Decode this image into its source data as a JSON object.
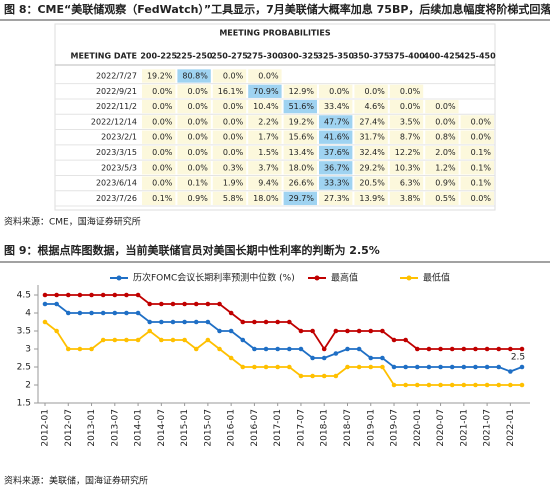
{
  "figure8": {
    "title": "图 8：CME“美联储观察（FedWatch）”工具显示，7月美联储大概率加息 75BP，后续加息幅度将阶梯式回落",
    "table": {
      "header": "MEETING PROBABILITIES",
      "columns": [
        "MEETING DATE",
        "200-225",
        "225-250",
        "250-275",
        "275-300",
        "300-325",
        "325-350",
        "350-375",
        "375-400",
        "400-425",
        "425-450"
      ],
      "rows": [
        [
          "2022/7/27",
          "19.2%",
          "80.8%",
          "0.0%",
          "0.0%",
          null,
          null,
          null,
          null,
          null,
          null
        ],
        [
          "2022/9/21",
          "0.0%",
          "0.0%",
          "16.1%",
          "70.9%",
          "12.9%",
          "0.0%",
          "0.0%",
          "0.0%",
          null,
          null
        ],
        [
          "2022/11/2",
          "0.0%",
          "0.0%",
          "0.0%",
          "10.4%",
          "51.6%",
          "33.4%",
          "4.6%",
          "0.0%",
          "0.0%",
          null
        ],
        [
          "2022/12/14",
          "0.0%",
          "0.0%",
          "0.0%",
          "2.2%",
          "19.2%",
          "47.7%",
          "27.4%",
          "3.5%",
          "0.0%",
          "0.0%"
        ],
        [
          "2023/2/1",
          "0.0%",
          "0.0%",
          "0.0%",
          "1.7%",
          "15.6%",
          "41.6%",
          "31.7%",
          "8.7%",
          "0.8%",
          "0.0%"
        ],
        [
          "2023/3/15",
          "0.0%",
          "0.0%",
          "0.0%",
          "1.5%",
          "13.4%",
          "37.6%",
          "32.4%",
          "12.2%",
          "2.0%",
          "0.1%"
        ],
        [
          "2023/5/3",
          "0.0%",
          "0.0%",
          "0.3%",
          "3.7%",
          "18.0%",
          "36.7%",
          "29.2%",
          "10.3%",
          "1.2%",
          "0.1%"
        ],
        [
          "2023/6/14",
          "0.0%",
          "0.1%",
          "1.9%",
          "9.4%",
          "26.6%",
          "33.3%",
          "20.5%",
          "6.3%",
          "0.9%",
          "0.1%"
        ],
        [
          "2023/7/26",
          "0.1%",
          "0.9%",
          "5.8%",
          "18.0%",
          "29.7%",
          "27.3%",
          "13.9%",
          "3.8%",
          "0.5%",
          "0.0%"
        ]
      ]
    },
    "source": "资料来源：CME，国海证券研究所"
  },
  "figure9": {
    "title": "图 9：根据点阵图数据，当前美联储官员对美国长期中性利率的判断为 2.5%",
    "source": "资料来源：美联储，国海证券研究所"
  },
  "chart_data": {
    "type": "line",
    "categories": [
      "2012-01",
      null,
      "2012-07",
      null,
      "2013-01",
      null,
      "2013-07",
      null,
      "2014-01",
      null,
      "2014-07",
      null,
      "2015-01",
      null,
      "2015-07",
      null,
      "2016-01",
      null,
      "2016-07",
      null,
      "2017-01",
      null,
      "2017-07",
      null,
      "2018-01",
      null,
      "2018-07",
      null,
      "2019-01",
      null,
      "2019-07",
      null,
      "2020-01",
      null,
      "2020-07",
      null,
      "2021-01",
      null,
      "2021-07",
      null,
      "2022-01",
      null
    ],
    "series": [
      {
        "name": "历次FOMC会议长期利率预测中位数 (%)",
        "color": "#1f6fc5",
        "values": [
          4.25,
          4.25,
          4,
          4,
          4,
          4,
          4,
          4,
          4,
          3.75,
          3.75,
          3.75,
          3.75,
          3.75,
          3.75,
          3.5,
          3.5,
          3.25,
          3,
          3,
          3,
          3,
          3,
          2.75,
          2.75,
          2.875,
          3,
          3,
          2.75,
          2.75,
          2.5,
          2.5,
          2.5,
          2.5,
          2.5,
          2.5,
          2.5,
          2.5,
          2.5,
          2.5,
          2.375,
          2.5
        ]
      },
      {
        "name": "最高值",
        "color": "#c00000",
        "values": [
          4.5,
          4.5,
          4.5,
          4.5,
          4.5,
          4.5,
          4.5,
          4.5,
          4.5,
          4.25,
          4.25,
          4.25,
          4.25,
          4.25,
          4.25,
          4.25,
          4,
          3.75,
          3.75,
          3.75,
          3.75,
          3.75,
          3.5,
          3.5,
          3,
          3.5,
          3.5,
          3.5,
          3.5,
          3.5,
          3.25,
          3.25,
          3,
          3,
          3,
          3,
          3,
          3,
          3,
          3,
          3,
          3
        ]
      },
      {
        "name": "最低值",
        "color": "#ffc000",
        "values": [
          3.75,
          3.5,
          3,
          3,
          3,
          3.25,
          3.25,
          3.25,
          3.25,
          3.5,
          3.25,
          3.25,
          3.25,
          3,
          3.25,
          3,
          2.75,
          2.5,
          2.5,
          2.5,
          2.5,
          2.5,
          2.25,
          2.25,
          2.25,
          2.25,
          2.5,
          2.5,
          2.5,
          2.5,
          2,
          2,
          2,
          2,
          2,
          2,
          2,
          2,
          2,
          2,
          2,
          2
        ]
      }
    ],
    "ylim": [
      1.5,
      4.5
    ],
    "yticks": [
      1.5,
      2,
      2.5,
      3,
      3.5,
      4,
      4.5
    ],
    "label_series": 0
  }
}
